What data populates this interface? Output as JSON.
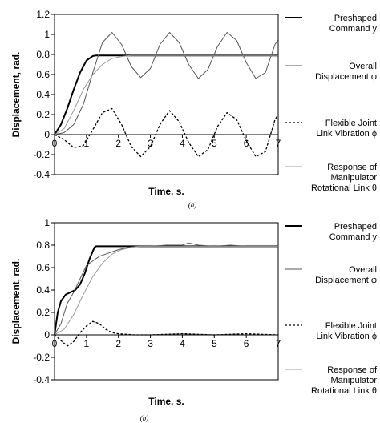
{
  "chart_data": [
    {
      "type": "line",
      "caption": "(a)",
      "xlabel": "Time, s.",
      "ylabel": "Displacement, rad.",
      "xlim": [
        0,
        7
      ],
      "ylim": [
        -0.4,
        1.2
      ],
      "xticks": [
        "0",
        "1",
        "2",
        "3",
        "4",
        "5",
        "6",
        "7"
      ],
      "yticks": [
        "1.2",
        "1",
        "0.8",
        "0.6",
        "0.4",
        "0.2",
        "0",
        "-0.2",
        "-0.4"
      ],
      "legend_position": "right",
      "grid": false,
      "series": [
        {
          "name": "Preshaped Command y",
          "style": "thick-black",
          "x": [
            0,
            0.2,
            0.4,
            0.6,
            0.8,
            1.0,
            1.2,
            1.3,
            7
          ],
          "y": [
            0,
            0.1,
            0.26,
            0.45,
            0.62,
            0.74,
            0.785,
            0.79,
            0.79
          ]
        },
        {
          "name": "Overall Displacement φ",
          "style": "thin-gray-dark",
          "x": [
            0,
            0.3,
            0.6,
            0.9,
            1.2,
            1.5,
            1.8,
            2.1,
            2.4,
            2.7,
            3.0,
            3.3,
            3.6,
            3.9,
            4.2,
            4.5,
            4.8,
            5.1,
            5.4,
            5.7,
            6.0,
            6.3,
            6.6,
            6.9,
            7.0
          ],
          "y": [
            0,
            0.02,
            0.1,
            0.3,
            0.62,
            0.92,
            1.02,
            0.9,
            0.68,
            0.57,
            0.66,
            0.9,
            1.02,
            0.92,
            0.7,
            0.56,
            0.65,
            0.88,
            1.02,
            0.94,
            0.72,
            0.56,
            0.62,
            0.9,
            0.95
          ]
        },
        {
          "name": "Flexible Joint Link Vibration ϕ",
          "style": "dotted-black",
          "x": [
            0,
            0.3,
            0.6,
            0.9,
            1.2,
            1.5,
            1.8,
            2.1,
            2.4,
            2.7,
            3.0,
            3.3,
            3.6,
            3.9,
            4.2,
            4.5,
            4.8,
            5.1,
            5.4,
            5.7,
            6.0,
            6.3,
            6.6,
            6.9,
            7.0
          ],
          "y": [
            0,
            -0.05,
            -0.13,
            -0.11,
            0.05,
            0.22,
            0.26,
            0.1,
            -0.12,
            -0.22,
            -0.12,
            0.1,
            0.24,
            0.13,
            -0.08,
            -0.22,
            -0.15,
            0.08,
            0.22,
            0.15,
            -0.06,
            -0.22,
            -0.17,
            0.15,
            0.2
          ]
        },
        {
          "name": "Response of Manipulator Rotational Link θ",
          "style": "thin-gray-light",
          "x": [
            0,
            0.3,
            0.6,
            0.9,
            1.2,
            1.5,
            1.8,
            2.1,
            2.4,
            2.7,
            3.0,
            7
          ],
          "y": [
            0,
            0.06,
            0.24,
            0.45,
            0.6,
            0.7,
            0.76,
            0.78,
            0.79,
            0.79,
            0.79,
            0.79
          ]
        }
      ]
    },
    {
      "type": "line",
      "caption": "(b)",
      "xlabel": "Time, s.",
      "ylabel": "Displacement, rad.",
      "xlim": [
        0,
        7
      ],
      "ylim": [
        -0.4,
        1.0
      ],
      "xticks": [
        "0",
        "1",
        "2",
        "3",
        "4",
        "5",
        "6",
        "7"
      ],
      "yticks": [
        "1",
        "0.8",
        "0.6",
        "0.4",
        "0.2",
        "0",
        "-0.2",
        "-0.4"
      ],
      "legend_position": "right",
      "grid": false,
      "series": [
        {
          "name": "Preshaped Command y",
          "style": "thick-black",
          "x": [
            0,
            0.1,
            0.2,
            0.35,
            0.5,
            0.65,
            0.8,
            0.95,
            1.1,
            1.25,
            1.3,
            7
          ],
          "y": [
            0,
            0.2,
            0.3,
            0.36,
            0.38,
            0.4,
            0.45,
            0.55,
            0.68,
            0.78,
            0.79,
            0.79
          ]
        },
        {
          "name": "Overall Displacement φ",
          "style": "thin-gray-dark",
          "x": [
            0,
            0.2,
            0.4,
            0.6,
            0.8,
            1.0,
            1.2,
            1.4,
            1.6,
            1.8,
            2.0,
            2.3,
            2.6,
            3.0,
            3.5,
            4.0,
            4.2,
            4.5,
            5.0,
            5.5,
            6.0,
            6.5,
            7.0
          ],
          "y": [
            0,
            0.1,
            0.28,
            0.38,
            0.5,
            0.62,
            0.66,
            0.7,
            0.72,
            0.74,
            0.76,
            0.78,
            0.79,
            0.79,
            0.8,
            0.8,
            0.82,
            0.8,
            0.79,
            0.8,
            0.79,
            0.79,
            0.79
          ]
        },
        {
          "name": "Flexible Joint Link Vibration ϕ",
          "style": "dotted-black",
          "x": [
            0,
            0.2,
            0.4,
            0.6,
            0.8,
            1.0,
            1.2,
            1.4,
            1.6,
            1.8,
            2.0,
            2.5,
            3.0,
            4.0,
            5.0,
            6.0,
            7.0
          ],
          "y": [
            0,
            -0.05,
            -0.1,
            -0.06,
            0.02,
            0.08,
            0.12,
            0.1,
            0.05,
            0.02,
            0.01,
            0.0,
            0.0,
            0.01,
            0.0,
            0.01,
            0.0
          ]
        },
        {
          "name": "Response of Manipulator Rotational Link θ",
          "style": "thin-gray-light",
          "x": [
            0,
            0.3,
            0.6,
            0.9,
            1.2,
            1.5,
            1.8,
            2.1,
            2.4,
            2.7,
            3.0,
            7
          ],
          "y": [
            0,
            0.05,
            0.18,
            0.36,
            0.52,
            0.64,
            0.72,
            0.76,
            0.78,
            0.79,
            0.79,
            0.79
          ]
        }
      ]
    }
  ],
  "legend_labels": [
    [
      "Preshaped",
      "Command y"
    ],
    [
      "Overall",
      "Displacement φ"
    ],
    [
      "Flexible Joint",
      "Link Vibration ϕ"
    ],
    [
      "Response of",
      "Manipulator",
      "Rotational Link θ"
    ]
  ],
  "colors": {
    "thick-black": "#000000",
    "thin-gray-dark": "#555555",
    "dotted-black": "#000000",
    "thin-gray-light": "#9a9a9a",
    "axes": "#000000",
    "background": "#ffffff"
  }
}
